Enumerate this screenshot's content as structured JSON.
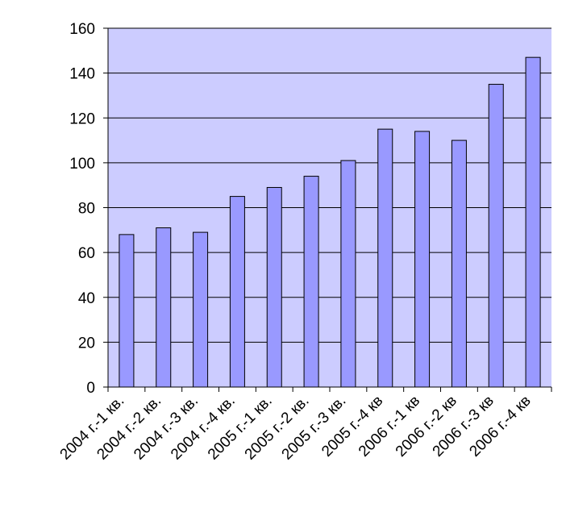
{
  "chart_data": {
    "type": "bar",
    "categories": [
      "2004 г.-1 кв.",
      "2004 г.-2 кв.",
      "2004 г.-3 кв.",
      "2004 г.-4 кв.",
      "2005 г.-1 кв.",
      "2005 г.-2 кв.",
      "2005 г.-3 кв.",
      "2005 г.-4 кв",
      "2006 г.-1 кв",
      "2006 г.-2 кв",
      "2006 г.-3 кв",
      "2006 г.-4 кв"
    ],
    "values": [
      68,
      71,
      69,
      85,
      89,
      94,
      101,
      115,
      114,
      110,
      135,
      147
    ],
    "color": "#9999ff",
    "ylim": [
      0,
      160
    ],
    "yticks": [
      0,
      20,
      40,
      60,
      80,
      100,
      120,
      140,
      160
    ],
    "grid": true
  }
}
